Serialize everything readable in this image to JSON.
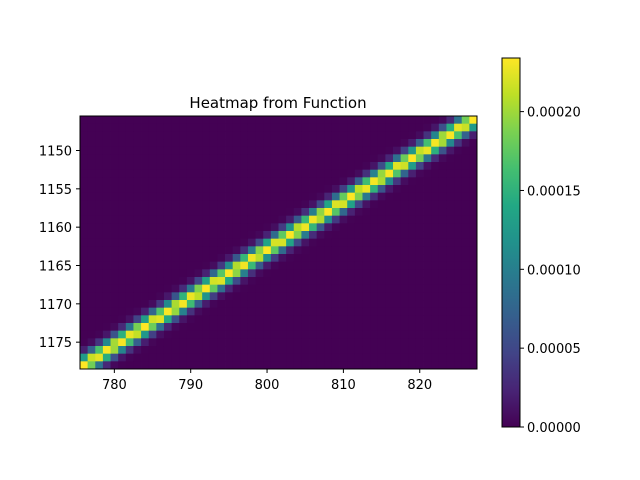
{
  "chart_data": {
    "type": "heatmap",
    "title": "Heatmap from Function",
    "xlabel": "",
    "ylabel": "",
    "xlim": [
      775.5,
      827.5
    ],
    "ylim": [
      1178.5,
      1145.5
    ],
    "x_ticks": [
      780,
      790,
      800,
      810,
      820
    ],
    "y_ticks": [
      1150,
      1155,
      1160,
      1165,
      1170,
      1175
    ],
    "colormap": "viridis",
    "vmin": 0,
    "vmax": 0.000234,
    "colorbar_ticks": [
      0.0,
      5e-05,
      0.0001,
      0.00015,
      0.0002
    ],
    "colorbar_tick_labels": [
      "0.00000",
      "0.00005",
      "0.00010",
      "0.00015",
      "0.00020"
    ],
    "function": {
      "description": "diagonal band, peak along y = 1178 - (x - 776) * 32/51",
      "peak_value": 0.000234,
      "sigma_rows": 0.9
    }
  }
}
